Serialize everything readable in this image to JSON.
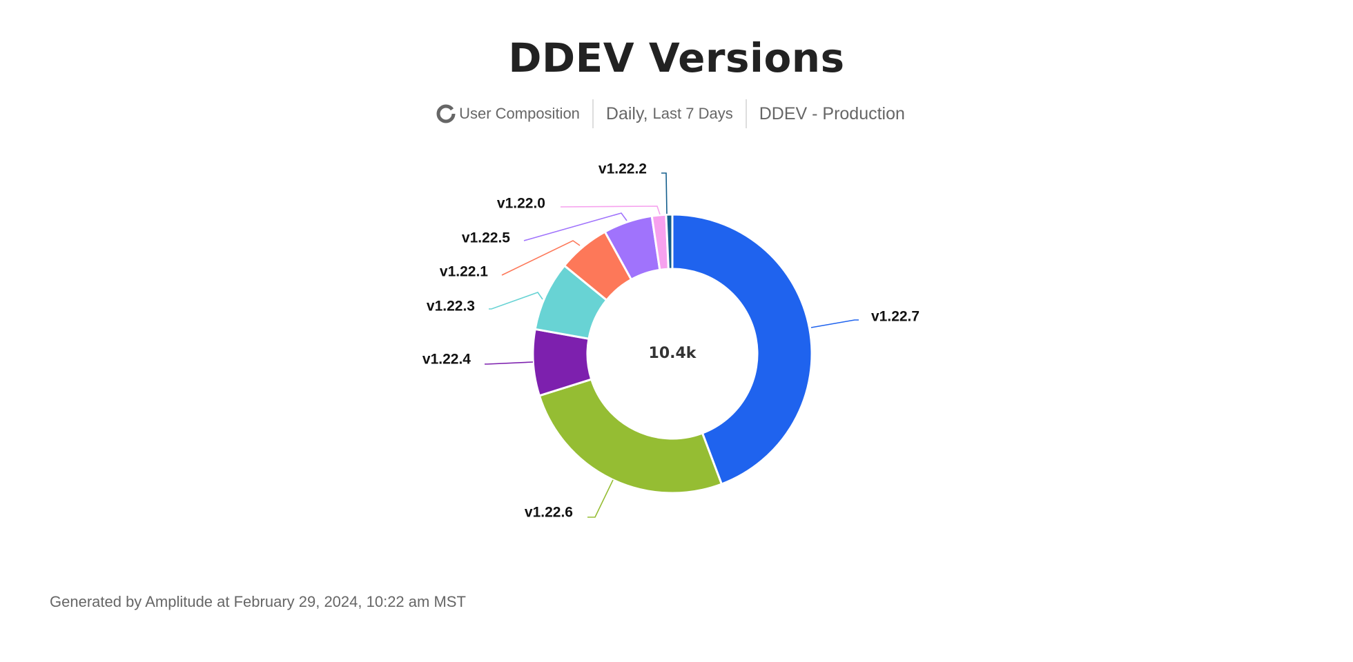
{
  "header": {
    "title": "DDEV Versions",
    "chart_kind_icon": "donut-icon",
    "chart_kind": "User Composition",
    "interval_prefix": "Daily,",
    "interval_range": "Last 7 Days",
    "project": "DDEV - Production"
  },
  "footer": {
    "text": "Generated by Amplitude at February 29, 2024, 10:22 am MST"
  },
  "chart_data": {
    "type": "pie",
    "variant": "donut",
    "total_label": "10.4k",
    "legend": "none",
    "series": [
      {
        "name": "v1.22.7",
        "value": 4600,
        "color": "#1f63ee"
      },
      {
        "name": "v1.22.6",
        "value": 2690,
        "color": "#95bd33"
      },
      {
        "name": "v1.22.4",
        "value": 800,
        "color": "#7d20ae"
      },
      {
        "name": "v1.22.3",
        "value": 840,
        "color": "#68d3d4"
      },
      {
        "name": "v1.22.1",
        "value": 630,
        "color": "#fd7859"
      },
      {
        "name": "v1.22.5",
        "value": 590,
        "color": "#a073fc"
      },
      {
        "name": "v1.22.0",
        "value": 170,
        "color": "#f6a1ee"
      },
      {
        "name": "v1.22.2",
        "value": 75,
        "color": "#135e8c"
      }
    ]
  }
}
